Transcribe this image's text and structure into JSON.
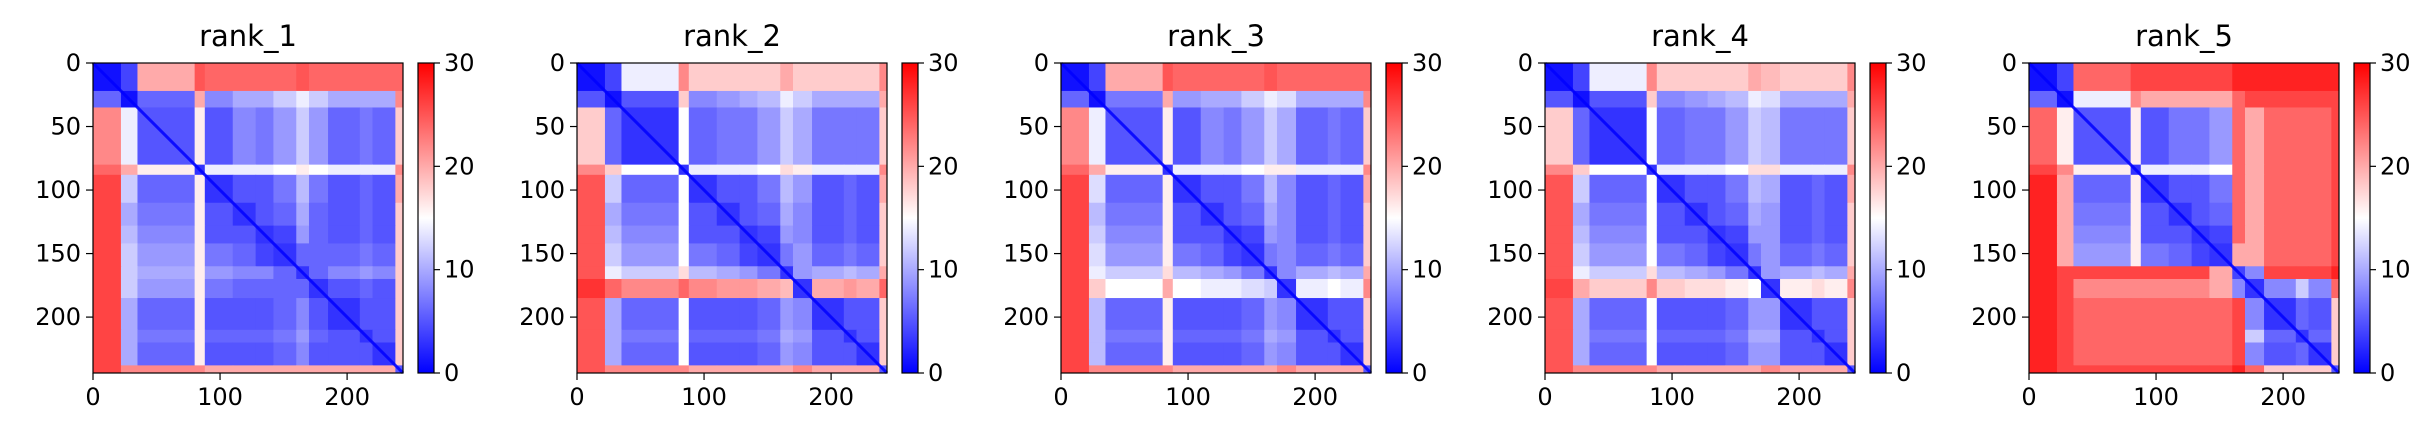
{
  "colors": {
    "low": "#0000ff",
    "mid": "#ffffff",
    "high": "#ff0000",
    "axis": "#000000"
  },
  "chart_data": [
    {
      "type": "heatmap",
      "title": "rank_1",
      "xlabel": "",
      "ylabel": "",
      "xlim": [
        0,
        244
      ],
      "ylim": [
        244,
        0
      ],
      "xticks": [
        0,
        100,
        200
      ],
      "yticks": [
        0,
        50,
        100,
        150,
        200
      ],
      "colorbar": {
        "min": 0,
        "max": 30,
        "ticks": [
          0,
          10,
          20,
          30
        ],
        "colormap": "bwr"
      },
      "block_boundaries": [
        0,
        22,
        35,
        80,
        88,
        110,
        128,
        142,
        160,
        170,
        185,
        210,
        220,
        238,
        244
      ],
      "block_values": [
        [
          1,
          4,
          20,
          25,
          24,
          24,
          24,
          24,
          25,
          24,
          24,
          24,
          24,
          24
        ],
        [
          6,
          1,
          6,
          20,
          8,
          10,
          10,
          12,
          14,
          12,
          10,
          10,
          10,
          22
        ],
        [
          22,
          14,
          5,
          16,
          5,
          8,
          7,
          9,
          12,
          9,
          6,
          7,
          6,
          18
        ],
        [
          24,
          20,
          16,
          3,
          14,
          14,
          14,
          15,
          16,
          15,
          14,
          14,
          14,
          22
        ],
        [
          26,
          12,
          6,
          16,
          3,
          5,
          5,
          7,
          11,
          7,
          5,
          6,
          5,
          20
        ],
        [
          26,
          10,
          7,
          16,
          5,
          3,
          5,
          6,
          10,
          6,
          5,
          6,
          5,
          18
        ],
        [
          26,
          11,
          8,
          16,
          5,
          5,
          3,
          4,
          9,
          6,
          5,
          6,
          5,
          18
        ],
        [
          26,
          12,
          9,
          16,
          7,
          6,
          4,
          3,
          6,
          6,
          6,
          7,
          6,
          18
        ],
        [
          26,
          12,
          10,
          16,
          9,
          8,
          8,
          6,
          3,
          6,
          8,
          9,
          8,
          18
        ],
        [
          26,
          12,
          9,
          16,
          7,
          6,
          6,
          6,
          6,
          3,
          5,
          6,
          5,
          18
        ],
        [
          26,
          10,
          6,
          16,
          5,
          5,
          5,
          6,
          8,
          5,
          3,
          5,
          5,
          18
        ],
        [
          26,
          10,
          7,
          16,
          6,
          6,
          6,
          7,
          9,
          6,
          5,
          3,
          5,
          18
        ],
        [
          26,
          10,
          6,
          16,
          5,
          5,
          5,
          6,
          8,
          5,
          5,
          5,
          3,
          18
        ],
        [
          26,
          22,
          22,
          22,
          20,
          20,
          20,
          20,
          20,
          20,
          20,
          20,
          20,
          5
        ]
      ]
    },
    {
      "type": "heatmap",
      "title": "rank_2",
      "xlabel": "",
      "ylabel": "",
      "xlim": [
        0,
        244
      ],
      "ylim": [
        244,
        0
      ],
      "xticks": [
        0,
        100,
        200
      ],
      "yticks": [
        0,
        50,
        100,
        150,
        200
      ],
      "colorbar": {
        "min": 0,
        "max": 30,
        "ticks": [
          0,
          10,
          20,
          30
        ],
        "colormap": "bwr"
      },
      "block_boundaries": [
        0,
        22,
        35,
        80,
        88,
        110,
        128,
        142,
        160,
        170,
        185,
        210,
        220,
        238,
        244
      ],
      "block_values": [
        [
          1,
          4,
          14,
          22,
          18,
          18,
          18,
          18,
          20,
          18,
          18,
          18,
          18,
          22
        ],
        [
          5,
          1,
          5,
          18,
          8,
          9,
          10,
          11,
          14,
          12,
          10,
          10,
          10,
          20
        ],
        [
          18,
          6,
          3,
          15,
          6,
          7,
          7,
          9,
          12,
          10,
          7,
          7,
          7,
          18
        ],
        [
          22,
          18,
          15,
          3,
          14,
          14,
          14,
          15,
          17,
          16,
          14,
          14,
          14,
          22
        ],
        [
          25,
          12,
          6,
          15,
          3,
          5,
          5,
          7,
          11,
          9,
          5,
          6,
          5,
          20
        ],
        [
          25,
          10,
          7,
          15,
          5,
          3,
          5,
          6,
          10,
          8,
          5,
          6,
          5,
          18
        ],
        [
          25,
          11,
          8,
          15,
          5,
          5,
          3,
          4,
          9,
          8,
          5,
          6,
          5,
          18
        ],
        [
          25,
          12,
          9,
          15,
          7,
          6,
          4,
          3,
          7,
          9,
          6,
          7,
          6,
          18
        ],
        [
          25,
          14,
          12,
          17,
          11,
          10,
          9,
          7,
          3,
          9,
          10,
          11,
          10,
          20
        ],
        [
          27,
          24,
          22,
          24,
          22,
          21,
          21,
          20,
          19,
          3,
          20,
          21,
          20,
          24
        ],
        [
          25,
          10,
          6,
          15,
          5,
          5,
          5,
          6,
          9,
          8,
          3,
          5,
          5,
          18
        ],
        [
          25,
          10,
          7,
          15,
          6,
          6,
          6,
          7,
          10,
          9,
          5,
          3,
          5,
          18
        ],
        [
          25,
          10,
          6,
          15,
          5,
          5,
          5,
          6,
          9,
          8,
          5,
          5,
          3,
          18
        ],
        [
          25,
          22,
          22,
          22,
          20,
          20,
          20,
          20,
          20,
          22,
          20,
          20,
          20,
          5
        ]
      ]
    },
    {
      "type": "heatmap",
      "title": "rank_3",
      "xlabel": "",
      "ylabel": "",
      "xlim": [
        0,
        244
      ],
      "ylim": [
        244,
        0
      ],
      "xticks": [
        0,
        100,
        200
      ],
      "yticks": [
        0,
        50,
        100,
        150,
        200
      ],
      "colorbar": {
        "min": 0,
        "max": 30,
        "ticks": [
          0,
          10,
          20,
          30
        ],
        "colormap": "bwr"
      },
      "block_boundaries": [
        0,
        22,
        35,
        80,
        88,
        110,
        128,
        142,
        160,
        170,
        185,
        210,
        220,
        238,
        244
      ],
      "block_values": [
        [
          1,
          4,
          20,
          25,
          24,
          24,
          24,
          24,
          25,
          24,
          24,
          24,
          24,
          24
        ],
        [
          6,
          1,
          7,
          20,
          9,
          10,
          10,
          12,
          14,
          13,
          10,
          10,
          10,
          22
        ],
        [
          22,
          14,
          5,
          16,
          5,
          8,
          7,
          9,
          12,
          10,
          6,
          7,
          6,
          18
        ],
        [
          24,
          20,
          16,
          3,
          14,
          14,
          14,
          15,
          16,
          16,
          14,
          14,
          14,
          22
        ],
        [
          26,
          13,
          6,
          16,
          3,
          5,
          5,
          7,
          11,
          8,
          5,
          6,
          5,
          20
        ],
        [
          26,
          11,
          7,
          16,
          5,
          3,
          5,
          6,
          10,
          8,
          5,
          6,
          5,
          18
        ],
        [
          26,
          12,
          8,
          16,
          5,
          5,
          3,
          4,
          9,
          8,
          5,
          6,
          5,
          18
        ],
        [
          26,
          13,
          9,
          16,
          7,
          6,
          4,
          3,
          7,
          8,
          6,
          7,
          6,
          18
        ],
        [
          26,
          14,
          12,
          17,
          11,
          10,
          9,
          7,
          3,
          8,
          10,
          11,
          10,
          20
        ],
        [
          26,
          18,
          15,
          20,
          15,
          14,
          14,
          13,
          12,
          3,
          14,
          15,
          14,
          22
        ],
        [
          26,
          11,
          6,
          16,
          5,
          5,
          5,
          6,
          9,
          8,
          3,
          5,
          5,
          18
        ],
        [
          26,
          11,
          7,
          16,
          6,
          6,
          6,
          7,
          10,
          9,
          5,
          3,
          5,
          18
        ],
        [
          26,
          11,
          6,
          16,
          5,
          5,
          5,
          6,
          9,
          8,
          5,
          5,
          3,
          18
        ],
        [
          26,
          22,
          22,
          22,
          20,
          20,
          20,
          20,
          20,
          22,
          20,
          20,
          20,
          5
        ]
      ]
    },
    {
      "type": "heatmap",
      "title": "rank_4",
      "xlabel": "",
      "ylabel": "",
      "xlim": [
        0,
        244
      ],
      "ylim": [
        244,
        0
      ],
      "xticks": [
        0,
        100,
        200
      ],
      "yticks": [
        0,
        50,
        100,
        150,
        200
      ],
      "colorbar": {
        "min": 0,
        "max": 30,
        "ticks": [
          0,
          10,
          20,
          30
        ],
        "colormap": "bwr"
      },
      "block_boundaries": [
        0,
        22,
        35,
        80,
        88,
        110,
        128,
        142,
        160,
        170,
        185,
        210,
        220,
        238,
        244
      ],
      "block_values": [
        [
          1,
          4,
          14,
          22,
          18,
          18,
          18,
          18,
          20,
          19,
          18,
          18,
          18,
          22
        ],
        [
          5,
          1,
          5,
          18,
          8,
          9,
          10,
          11,
          14,
          13,
          10,
          10,
          10,
          20
        ],
        [
          18,
          6,
          3,
          15,
          6,
          7,
          7,
          9,
          12,
          11,
          7,
          7,
          7,
          18
        ],
        [
          22,
          18,
          15,
          3,
          14,
          14,
          14,
          15,
          17,
          17,
          14,
          14,
          14,
          22
        ],
        [
          25,
          12,
          6,
          15,
          3,
          5,
          5,
          7,
          11,
          10,
          5,
          6,
          5,
          20
        ],
        [
          25,
          10,
          7,
          15,
          5,
          3,
          5,
          6,
          10,
          9,
          5,
          6,
          5,
          18
        ],
        [
          25,
          11,
          8,
          15,
          5,
          5,
          3,
          4,
          9,
          9,
          5,
          6,
          5,
          18
        ],
        [
          25,
          12,
          9,
          15,
          7,
          6,
          4,
          3,
          7,
          9,
          6,
          7,
          6,
          18
        ],
        [
          25,
          14,
          12,
          17,
          11,
          10,
          9,
          7,
          3,
          9,
          10,
          11,
          10,
          20
        ],
        [
          26,
          20,
          18,
          22,
          18,
          17,
          17,
          16,
          15,
          3,
          16,
          17,
          16,
          22
        ],
        [
          25,
          10,
          6,
          15,
          5,
          5,
          5,
          6,
          9,
          9,
          3,
          5,
          5,
          18
        ],
        [
          25,
          10,
          7,
          15,
          6,
          6,
          6,
          7,
          10,
          10,
          5,
          3,
          5,
          18
        ],
        [
          25,
          10,
          6,
          15,
          5,
          5,
          5,
          6,
          9,
          9,
          5,
          5,
          3,
          18
        ],
        [
          25,
          22,
          22,
          22,
          20,
          20,
          20,
          20,
          20,
          22,
          20,
          20,
          20,
          5
        ]
      ]
    },
    {
      "type": "heatmap",
      "title": "rank_5",
      "xlabel": "",
      "ylabel": "",
      "xlim": [
        0,
        244
      ],
      "ylim": [
        244,
        0
      ],
      "xticks": [
        0,
        100,
        200
      ],
      "yticks": [
        0,
        50,
        100,
        150,
        200
      ],
      "colorbar": {
        "min": 0,
        "max": 30,
        "ticks": [
          0,
          10,
          20,
          30
        ],
        "colormap": "bwr"
      },
      "block_boundaries": [
        0,
        22,
        35,
        80,
        88,
        110,
        128,
        142,
        160,
        170,
        185,
        210,
        220,
        238,
        244
      ],
      "block_values": [
        [
          1,
          4,
          24,
          26,
          26,
          26,
          26,
          26,
          28,
          28,
          28,
          28,
          28,
          28
        ],
        [
          6,
          1,
          14,
          22,
          20,
          20,
          20,
          20,
          24,
          26,
          26,
          26,
          26,
          26
        ],
        [
          24,
          16,
          5,
          16,
          5,
          7,
          7,
          9,
          24,
          20,
          24,
          24,
          24,
          26
        ],
        [
          26,
          22,
          16,
          3,
          14,
          14,
          14,
          15,
          24,
          20,
          24,
          24,
          24,
          26
        ],
        [
          28,
          20,
          6,
          16,
          3,
          5,
          5,
          7,
          24,
          20,
          24,
          24,
          24,
          26
        ],
        [
          28,
          20,
          7,
          16,
          5,
          3,
          5,
          6,
          24,
          20,
          24,
          24,
          24,
          26
        ],
        [
          28,
          20,
          8,
          16,
          5,
          5,
          3,
          4,
          24,
          20,
          24,
          24,
          24,
          26
        ],
        [
          28,
          20,
          9,
          16,
          7,
          6,
          4,
          3,
          20,
          20,
          24,
          24,
          24,
          26
        ],
        [
          28,
          26,
          26,
          26,
          26,
          26,
          26,
          20,
          4,
          8,
          26,
          26,
          26,
          28
        ],
        [
          28,
          26,
          22,
          22,
          22,
          22,
          22,
          20,
          8,
          3,
          8,
          12,
          8,
          24
        ],
        [
          28,
          26,
          24,
          24,
          24,
          24,
          24,
          24,
          26,
          8,
          3,
          6,
          5,
          18
        ],
        [
          28,
          26,
          24,
          24,
          24,
          24,
          24,
          24,
          26,
          12,
          6,
          3,
          6,
          18
        ],
        [
          28,
          26,
          24,
          24,
          24,
          24,
          24,
          24,
          26,
          8,
          5,
          6,
          3,
          18
        ],
        [
          28,
          26,
          26,
          26,
          26,
          26,
          26,
          26,
          28,
          24,
          18,
          18,
          18,
          5
        ]
      ]
    }
  ]
}
